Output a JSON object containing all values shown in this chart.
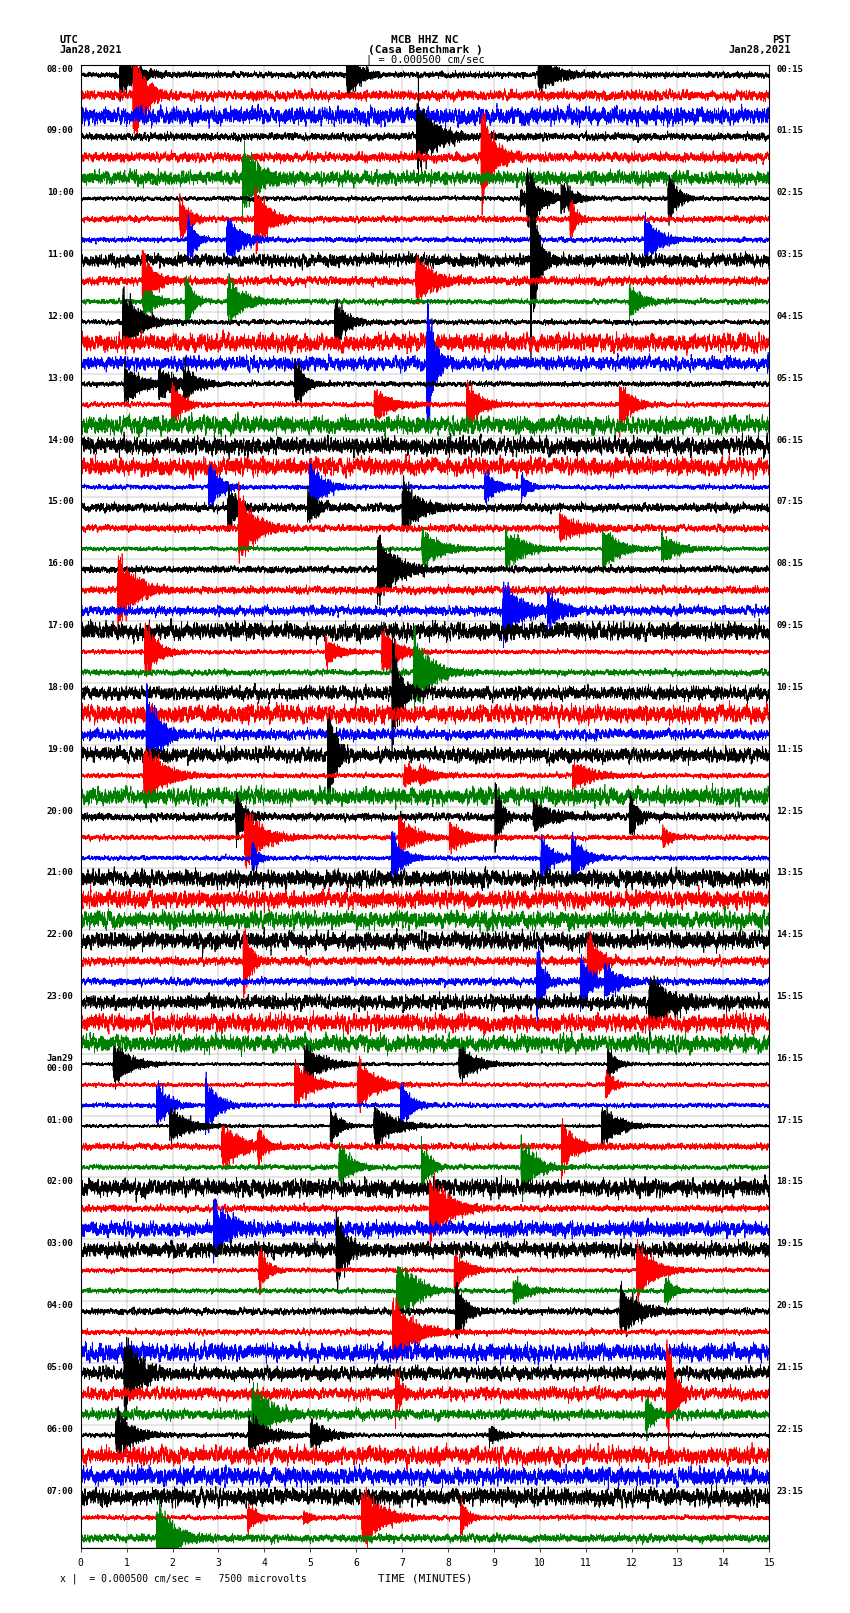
{
  "title_line1": "MCB HHZ NC",
  "title_line2": "(Casa Benchmark )",
  "title_line3": "| = 0.000500 cm/sec",
  "top_left_label1": "UTC",
  "top_left_label2": "Jan28,2021",
  "top_right_label1": "PST",
  "top_right_label2": "Jan28,2021",
  "xlabel": "TIME (MINUTES)",
  "bottom_note": "x |  = 0.000500 cm/sec =   7500 microvolts",
  "bg_color": "#ffffff",
  "trace_colors": [
    "black",
    "red",
    "blue",
    "green"
  ],
  "left_times_utc": [
    "08:00",
    "09:00",
    "10:00",
    "11:00",
    "12:00",
    "13:00",
    "14:00",
    "15:00",
    "16:00",
    "17:00",
    "18:00",
    "19:00",
    "20:00",
    "21:00",
    "22:00",
    "23:00",
    "Jan29\n00:00",
    "01:00",
    "02:00",
    "03:00",
    "04:00",
    "05:00",
    "06:00",
    "07:00"
  ],
  "right_times_pst": [
    "00:15",
    "01:15",
    "02:15",
    "03:15",
    "04:15",
    "05:15",
    "06:15",
    "07:15",
    "08:15",
    "09:15",
    "10:15",
    "11:15",
    "12:15",
    "13:15",
    "14:15",
    "15:15",
    "16:15",
    "17:15",
    "18:15",
    "19:15",
    "20:15",
    "21:15",
    "22:15",
    "23:15"
  ],
  "n_hours": 24,
  "traces_per_hour": 3,
  "minutes": 15,
  "sample_rate": 40,
  "seed": 42,
  "grid_color": "#888888",
  "grid_linewidth": 0.3
}
